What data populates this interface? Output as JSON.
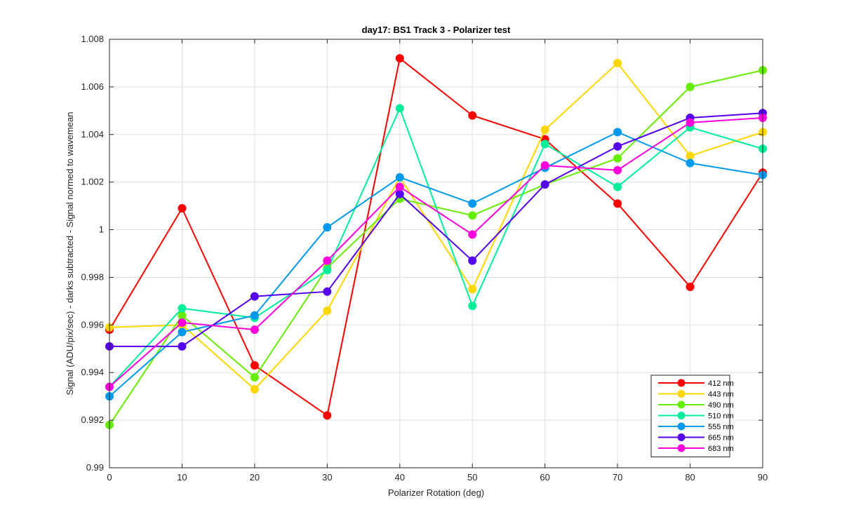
{
  "chart_data": {
    "type": "line",
    "title": "day17: BS1  Track 3 - Polarizer test",
    "xlabel": "Polarizer Rotation (deg)",
    "ylabel": "Signal (ADU/pix/sec) - darks subtracted - Signal normed to wavemean",
    "x": [
      0,
      10,
      20,
      30,
      40,
      50,
      60,
      70,
      80,
      90
    ],
    "xlim": [
      0,
      90
    ],
    "ylim": [
      0.99,
      1.008
    ],
    "xticks": [
      0,
      10,
      20,
      30,
      40,
      50,
      60,
      70,
      80,
      90
    ],
    "xtick_labels": [
      "0",
      "10",
      "20",
      "30",
      "40",
      "50",
      "60",
      "70",
      "80",
      "90"
    ],
    "yticks": [
      0.99,
      0.992,
      0.994,
      0.996,
      0.998,
      1.0,
      1.002,
      1.004,
      1.006,
      1.008
    ],
    "ytick_labels": [
      "0.99",
      "0.992",
      "0.994",
      "0.996",
      "0.998",
      "1",
      "1.002",
      "1.004",
      "1.006",
      "1.008"
    ],
    "grid": true,
    "legend_position": "bottom-right",
    "series": [
      {
        "name": "412 nm",
        "color": "#ff0000",
        "values": [
          0.9958,
          1.0009,
          0.9943,
          0.9922,
          1.0072,
          1.0048,
          1.0038,
          1.0011,
          0.9976,
          1.0024
        ]
      },
      {
        "name": "443 nm",
        "color": "#ffd700",
        "values": [
          0.9959,
          0.996,
          0.9933,
          0.9966,
          1.0022,
          0.9975,
          1.0042,
          1.007,
          1.0031,
          1.0041
        ]
      },
      {
        "name": "490 nm",
        "color": "#66ee00",
        "values": [
          0.9918,
          0.9964,
          0.9938,
          0.9984,
          1.0013,
          1.0006,
          1.0019,
          1.003,
          1.006,
          1.0067
        ]
      },
      {
        "name": "510 nm",
        "color": "#00ee99",
        "values": [
          0.9934,
          0.9967,
          0.9963,
          0.9983,
          1.0051,
          0.9968,
          1.0036,
          1.0018,
          1.0043,
          1.0034
        ]
      },
      {
        "name": "555 nm",
        "color": "#0099ee",
        "values": [
          0.993,
          0.9957,
          0.9964,
          1.0001,
          1.0022,
          1.0011,
          1.0026,
          1.0041,
          1.0028,
          1.0023
        ]
      },
      {
        "name": "665 nm",
        "color": "#5500ee",
        "values": [
          0.9951,
          0.9951,
          0.9972,
          0.9974,
          1.0015,
          0.9987,
          1.0019,
          1.0035,
          1.0047,
          1.0049
        ]
      },
      {
        "name": "683 nm",
        "color": "#ff00dd",
        "values": [
          0.9934,
          0.9961,
          0.9958,
          0.9987,
          1.0018,
          0.9998,
          1.0027,
          1.0025,
          1.0045,
          1.0047
        ]
      }
    ]
  }
}
